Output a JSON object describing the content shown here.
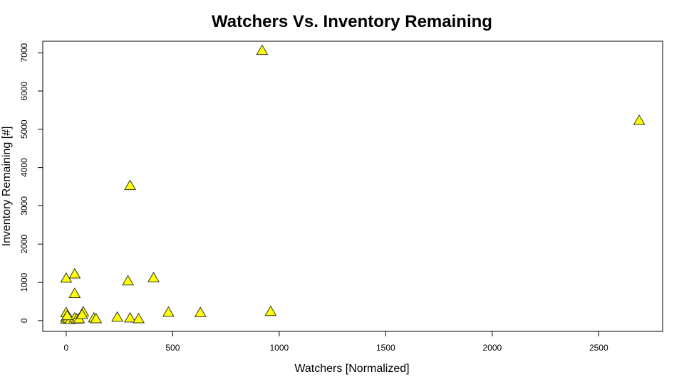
{
  "chart_data": {
    "type": "scatter",
    "title": "Watchers Vs. Inventory Remaining",
    "xlabel": "Watchers [Normalized]",
    "ylabel": "Inventory Remaining [#]",
    "xlim": [
      -110,
      2800
    ],
    "ylim": [
      -280,
      7300
    ],
    "xticks": [
      0,
      500,
      1000,
      1500,
      2000,
      2500
    ],
    "yticks": [
      0,
      1000,
      2000,
      3000,
      4000,
      5000,
      6000,
      7000
    ],
    "marker": "triangle",
    "marker_fill": "#ffff00",
    "marker_stroke": "#333333",
    "grid": false,
    "points": [
      {
        "x": 920,
        "y": 7050
      },
      {
        "x": 2690,
        "y": 5220
      },
      {
        "x": 300,
        "y": 3520
      },
      {
        "x": 40,
        "y": 1210
      },
      {
        "x": 0,
        "y": 1100
      },
      {
        "x": 410,
        "y": 1110
      },
      {
        "x": 290,
        "y": 1030
      },
      {
        "x": 40,
        "y": 700
      },
      {
        "x": 960,
        "y": 230
      },
      {
        "x": 480,
        "y": 210
      },
      {
        "x": 630,
        "y": 200
      },
      {
        "x": 80,
        "y": 220
      },
      {
        "x": 0,
        "y": 200
      },
      {
        "x": 240,
        "y": 80
      },
      {
        "x": 300,
        "y": 60
      },
      {
        "x": 340,
        "y": 40
      },
      {
        "x": 130,
        "y": 60
      },
      {
        "x": 140,
        "y": 40
      },
      {
        "x": 0,
        "y": 80
      },
      {
        "x": 0,
        "y": 30
      },
      {
        "x": 10,
        "y": 50
      },
      {
        "x": 20,
        "y": 20
      },
      {
        "x": 40,
        "y": 60
      },
      {
        "x": 50,
        "y": 30
      },
      {
        "x": 60,
        "y": 40
      },
      {
        "x": 75,
        "y": 150
      },
      {
        "x": 5,
        "y": 120
      }
    ]
  }
}
